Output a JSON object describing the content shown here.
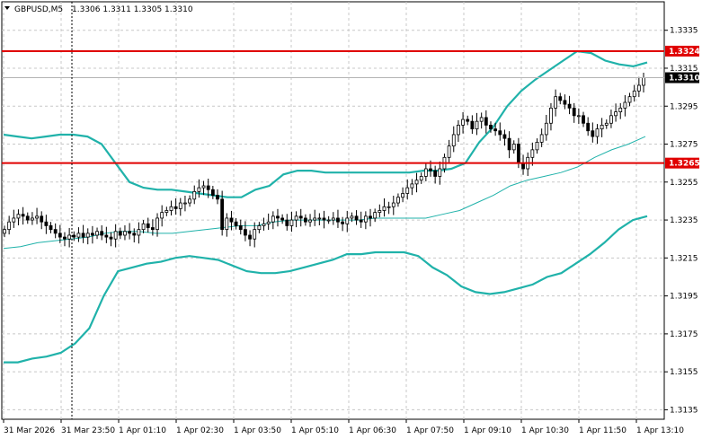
{
  "header": {
    "symbol": "GBPUSD,M5",
    "ohlc": "1.3306 1.3311 1.3305 1.3310"
  },
  "colors": {
    "background": "#ffffff",
    "grid": "#c8c8c8",
    "bands": "#20b2aa",
    "middle": "#20b2aa",
    "candle": "#000000",
    "level": "#e00000",
    "price_line": "#b4b4b4"
  },
  "chart_data": {
    "type": "candlestick",
    "title": "",
    "ylim": [
      1.313,
      1.335
    ],
    "y_ticks": [
      "1.3335",
      "1.3315",
      "1.3295",
      "1.3275",
      "1.3255",
      "1.3235",
      "1.3215",
      "1.3195",
      "1.3175",
      "1.3155",
      "1.3135"
    ],
    "x_ticks": [
      "31 Mar 2026",
      "31 Mar 23:50",
      "1 Apr 01:10",
      "1 Apr 02:30",
      "1 Apr 03:50",
      "1 Apr 05:10",
      "1 Apr 06:30",
      "1 Apr 07:50",
      "1 Apr 09:10",
      "1 Apr 10:30",
      "1 Apr 11:50",
      "1 Apr 13:10"
    ],
    "horizontal_levels": [
      {
        "label": "1.3324",
        "value": 1.3324
      },
      {
        "label": "1.3265",
        "value": 1.3265
      }
    ],
    "current_price": {
      "label": "1.3310",
      "value": 1.331
    },
    "grid": true,
    "candles": [
      1.323,
      1.3234,
      1.3236,
      1.3238,
      1.3237,
      1.3235,
      1.3236,
      1.3237,
      1.3234,
      1.3232,
      1.323,
      1.3228,
      1.3226,
      1.3225,
      1.3227,
      1.3226,
      1.3228,
      1.3226,
      1.3228,
      1.3227,
      1.3229,
      1.3227,
      1.3226,
      1.3225,
      1.3229,
      1.3227,
      1.3229,
      1.3228,
      1.3227,
      1.323,
      1.3233,
      1.3231,
      1.323,
      1.3236,
      1.3239,
      1.324,
      1.3242,
      1.3241,
      1.3244,
      1.3244,
      1.3246,
      1.325,
      1.3252,
      1.3253,
      1.3251,
      1.3248,
      1.3246,
      1.323,
      1.3236,
      1.3234,
      1.3232,
      1.323,
      1.3227,
      1.3225,
      1.323,
      1.3232,
      1.3233,
      1.3234,
      1.3237,
      1.3236,
      1.3235,
      1.3232,
      1.3235,
      1.3237,
      1.3236,
      1.3234,
      1.3235,
      1.3236,
      1.3236,
      1.3235,
      1.3235,
      1.3236,
      1.3234,
      1.3233,
      1.3236,
      1.3237,
      1.3235,
      1.3234,
      1.3237,
      1.3236,
      1.3239,
      1.324,
      1.3242,
      1.3242,
      1.3244,
      1.3247,
      1.3249,
      1.3252,
      1.3254,
      1.3256,
      1.3258,
      1.3262,
      1.3261,
      1.3258,
      1.3262,
      1.3268,
      1.3274,
      1.328,
      1.3285,
      1.3288,
      1.3287,
      1.3283,
      1.3287,
      1.3289,
      1.3285,
      1.3283,
      1.3282,
      1.328,
      1.3278,
      1.3272,
      1.3275,
      1.3265,
      1.3262,
      1.3268,
      1.3272,
      1.3276,
      1.328,
      1.3286,
      1.3294,
      1.33,
      1.3298,
      1.3296,
      1.3294,
      1.329,
      1.329,
      1.3286,
      1.3282,
      1.3279,
      1.3283,
      1.3285,
      1.3286,
      1.329,
      1.3292,
      1.3294,
      1.3297,
      1.33,
      1.3303,
      1.3306,
      1.331
    ],
    "upper_band": [
      1.328,
      1.3279,
      1.3278,
      1.3279,
      1.328,
      1.328,
      1.3279,
      1.3275,
      1.3265,
      1.3255,
      1.3252,
      1.3251,
      1.3251,
      1.325,
      1.3249,
      1.3248,
      1.3247,
      1.3247,
      1.3251,
      1.3253,
      1.3259,
      1.3261,
      1.3261,
      1.326,
      1.326,
      1.326,
      1.326,
      1.326,
      1.326,
      1.326,
      1.3261,
      1.3261,
      1.3262,
      1.3265,
      1.3276,
      1.3284,
      1.3295,
      1.3303,
      1.3309,
      1.3314,
      1.3319,
      1.3324,
      1.3323,
      1.3319,
      1.3317,
      1.3316,
      1.3318
    ],
    "lower_band": [
      1.316,
      1.316,
      1.3162,
      1.3163,
      1.3165,
      1.317,
      1.3178,
      1.3195,
      1.3208,
      1.321,
      1.3212,
      1.3213,
      1.3215,
      1.3216,
      1.3215,
      1.3214,
      1.3211,
      1.3208,
      1.3207,
      1.3207,
      1.3208,
      1.321,
      1.3212,
      1.3214,
      1.3217,
      1.3217,
      1.3218,
      1.3218,
      1.3218,
      1.3216,
      1.321,
      1.3206,
      1.32,
      1.3197,
      1.3196,
      1.3197,
      1.3199,
      1.3201,
      1.3205,
      1.3207,
      1.3212,
      1.3217,
      1.3223,
      1.323,
      1.3235,
      1.3237
    ],
    "middle_band": [
      1.322,
      1.3221,
      1.3223,
      1.3224,
      1.3225,
      1.3226,
      1.3228,
      1.3229,
      1.3229,
      1.3228,
      1.3228,
      1.3229,
      1.323,
      1.3231,
      1.3232,
      1.3232,
      1.3234,
      1.3235,
      1.3235,
      1.3235,
      1.3235,
      1.3235,
      1.3236,
      1.3236,
      1.3236,
      1.3236,
      1.3238,
      1.324,
      1.3244,
      1.3248,
      1.3253,
      1.3256,
      1.3258,
      1.326,
      1.3263,
      1.3268,
      1.3272,
      1.3275,
      1.3279
    ]
  }
}
